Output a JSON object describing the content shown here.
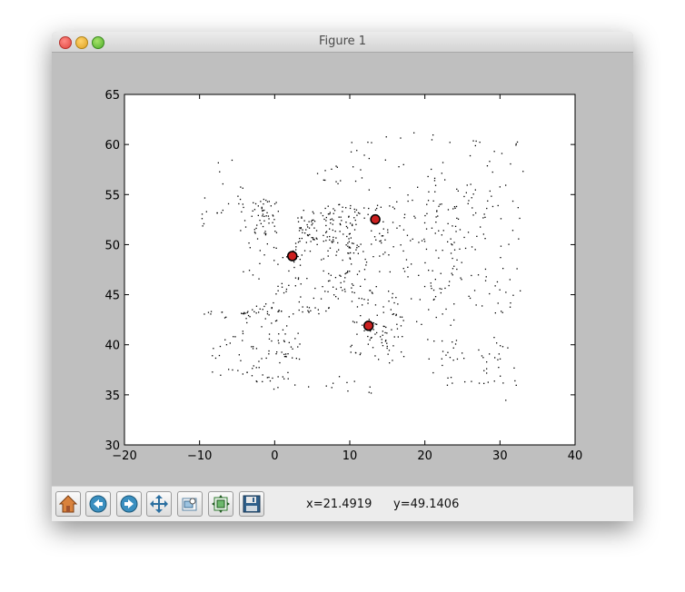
{
  "window": {
    "title": "Figure 1"
  },
  "toolbar": {
    "buttons": [
      {
        "name": "home-button",
        "icon": "home-icon"
      },
      {
        "name": "back-button",
        "icon": "back-arrow-icon"
      },
      {
        "name": "forward-button",
        "icon": "forward-arrow-icon"
      },
      {
        "name": "pan-button",
        "icon": "pan-arrows-icon"
      },
      {
        "name": "zoom-button",
        "icon": "zoom-rect-icon"
      },
      {
        "name": "configure-subplots-button",
        "icon": "subplots-icon"
      },
      {
        "name": "save-button",
        "icon": "floppy-disk-icon"
      }
    ],
    "x_readout": "x=21.4919",
    "y_readout": "y=49.1406"
  },
  "chart_data": {
    "type": "scatter",
    "title": "",
    "xlabel": "",
    "ylabel": "",
    "xlim": [
      -20,
      40
    ],
    "ylim": [
      30,
      65
    ],
    "xticks": [
      -20,
      -10,
      0,
      10,
      20,
      30,
      40
    ],
    "yticks": [
      30,
      35,
      40,
      45,
      50,
      55,
      60,
      65
    ],
    "xtick_labels": [
      "−20",
      "−10",
      "0",
      "10",
      "20",
      "30",
      "40"
    ],
    "ytick_labels": [
      "30",
      "35",
      "40",
      "45",
      "50",
      "55",
      "60",
      "65"
    ],
    "grid": false,
    "series": [
      {
        "marker": "dot",
        "color": "#000000",
        "point_count": "approx. 3000",
        "spatial_regions": [
          {
            "x": [
              -9.5,
              -6.5
            ],
            "y": [
              37,
              43.5
            ],
            "density": 0.5
          },
          {
            "x": [
              -6.5,
              3
            ],
            "y": [
              36.5,
              43.5
            ],
            "density": 0.4
          },
          {
            "x": [
              -5.5,
              0.5
            ],
            "y": [
              36.3,
              37.8
            ],
            "density": 1.2
          },
          {
            "x": [
              -1,
              3.5
            ],
            "y": [
              38.5,
              42.5
            ],
            "density": 0.8
          },
          {
            "x": [
              -4.5,
              2
            ],
            "y": [
              42.5,
              43.8
            ],
            "density": 1.2
          },
          {
            "x": [
              -4.5,
              8
            ],
            "y": [
              43,
              50.5
            ],
            "density": 0.45
          },
          {
            "x": [
              1.5,
              3.5
            ],
            "y": [
              48,
              49.5
            ],
            "density": 2.0
          },
          {
            "x": [
              3,
              8
            ],
            "y": [
              43,
              44
            ],
            "density": 1.2
          },
          {
            "x": [
              -5,
              -1
            ],
            "y": [
              50,
              56
            ],
            "density": 0.7
          },
          {
            "x": [
              -3,
              0.5
            ],
            "y": [
              51,
              54.5
            ],
            "density": 1.8
          },
          {
            "x": [
              -10,
              -6
            ],
            "y": [
              51.5,
              55
            ],
            "density": 0.5
          },
          {
            "x": [
              -8,
              -5
            ],
            "y": [
              56,
              58.5
            ],
            "density": 0.3
          },
          {
            "x": [
              3,
              8
            ],
            "y": [
              50,
              53.5
            ],
            "density": 2.5
          },
          {
            "x": [
              6.5,
              11
            ],
            "y": [
              49.5,
              54
            ],
            "density": 1.5
          },
          {
            "x": [
              8,
              15
            ],
            "y": [
              47,
              54.5
            ],
            "density": 0.7
          },
          {
            "x": [
              6,
              13
            ],
            "y": [
              45,
              47.5
            ],
            "density": 0.9
          },
          {
            "x": [
              8,
              13.5
            ],
            "y": [
              44.5,
              46
            ],
            "density": 1.3
          },
          {
            "x": [
              10,
              18
            ],
            "y": [
              38,
              44.5
            ],
            "density": 0.6
          },
          {
            "x": [
              12,
              15
            ],
            "y": [
              40.5,
              42.5
            ],
            "density": 1.0
          },
          {
            "x": [
              13,
              17
            ],
            "y": [
              39,
              42
            ],
            "density": 0.7
          },
          {
            "x": [
              15,
              24
            ],
            "y": [
              42,
              48.5
            ],
            "density": 0.45
          },
          {
            "x": [
              14,
              25
            ],
            "y": [
              48.5,
              54.5
            ],
            "density": 0.55
          },
          {
            "x": [
              19,
              20
            ],
            "y": [
              50,
              50.5
            ],
            "density": 2.5
          },
          {
            "x": [
              20,
              33
            ],
            "y": [
              43,
              56
            ],
            "density": 0.35
          },
          {
            "x": [
              24,
              33
            ],
            "y": [
              55,
              61
            ],
            "density": 0.22
          },
          {
            "x": [
              10,
              24
            ],
            "y": [
              55,
              61.5
            ],
            "density": 0.2
          },
          {
            "x": [
              20,
              30
            ],
            "y": [
              36,
              41
            ],
            "density": 0.3
          },
          {
            "x": [
              26,
              33
            ],
            "y": [
              36,
              40
            ],
            "density": 0.4
          },
          {
            "x": [
              22,
              26
            ],
            "y": [
              38,
              40.5
            ],
            "density": 0.6
          },
          {
            "x": [
              -1,
              15
            ],
            "y": [
              35,
              37
            ],
            "density": 0.3
          },
          {
            "x": [
              5,
              9
            ],
            "y": [
              56,
              58.5
            ],
            "density": 0.6
          },
          {
            "x": [
              10,
              13
            ],
            "y": [
              58.5,
              60.5
            ],
            "density": 0.4
          },
          {
            "x": [
              30,
              33
            ],
            "y": [
              34.5,
              35.5
            ],
            "density": 0.2
          }
        ]
      },
      {
        "marker": "circle",
        "color": "#cc2020",
        "edge_color": "#000000",
        "points": [
          {
            "x": 2.35,
            "y": 48.86
          },
          {
            "x": 13.4,
            "y": 52.52
          },
          {
            "x": 12.5,
            "y": 41.9
          }
        ]
      }
    ]
  }
}
